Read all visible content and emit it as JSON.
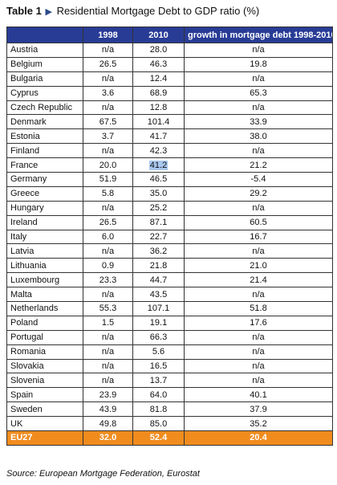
{
  "title": {
    "label": "Table 1",
    "arrow": "▶",
    "text": "Residential Mortgage Debt to GDP ratio (%)"
  },
  "table": {
    "headers": [
      "",
      "1998",
      "2010",
      "growth in mortgage debt 1998-2010"
    ],
    "rows": [
      [
        "Austria",
        "n/a",
        "28.0",
        "n/a"
      ],
      [
        "Belgium",
        "26.5",
        "46.3",
        "19.8"
      ],
      [
        "Bulgaria",
        "n/a",
        "12.4",
        "n/a"
      ],
      [
        "Cyprus",
        "3.6",
        "68.9",
        "65.3"
      ],
      [
        "Czech Republic",
        "n/a",
        "12.8",
        "n/a"
      ],
      [
        "Denmark",
        "67.5",
        "101.4",
        "33.9"
      ],
      [
        "Estonia",
        "3.7",
        "41.7",
        "38.0"
      ],
      [
        "Finland",
        "n/a",
        "42.3",
        "n/a"
      ],
      [
        "France",
        "20.0",
        "41.2",
        "21.2"
      ],
      [
        "Germany",
        "51.9",
        "46.5",
        "-5.4"
      ],
      [
        "Greece",
        "5.8",
        "35.0",
        "29.2"
      ],
      [
        "Hungary",
        "n/a",
        "25.2",
        "n/a"
      ],
      [
        "Ireland",
        "26.5",
        "87.1",
        "60.5"
      ],
      [
        "Italy",
        "6.0",
        "22.7",
        "16.7"
      ],
      [
        "Latvia",
        "n/a",
        "36.2",
        "n/a"
      ],
      [
        "Lithuania",
        "0.9",
        "21.8",
        "21.0"
      ],
      [
        "Luxembourg",
        "23.3",
        "44.7",
        "21.4"
      ],
      [
        "Malta",
        "n/a",
        "43.5",
        "n/a"
      ],
      [
        "Netherlands",
        "55.3",
        "107.1",
        "51.8"
      ],
      [
        "Poland",
        "1.5",
        "19.1",
        "17.6"
      ],
      [
        "Portugal",
        "n/a",
        "66.3",
        "n/a"
      ],
      [
        "Romania",
        "n/a",
        "5.6",
        "n/a"
      ],
      [
        "Slovakia",
        "n/a",
        "16.5",
        "n/a"
      ],
      [
        "Slovenia",
        "n/a",
        "13.7",
        "n/a"
      ],
      [
        "Spain",
        "23.9",
        "64.0",
        "40.1"
      ],
      [
        "Sweden",
        "43.9",
        "81.8",
        "37.9"
      ],
      [
        "UK",
        "49.8",
        "85.0",
        "35.2"
      ]
    ],
    "highlighted_cell": {
      "row": 8,
      "col": 2
    },
    "total": [
      "EU27",
      "32.0",
      "52.4",
      "20.4"
    ]
  },
  "source": "Source: European Mortgage Federation, Eurostat",
  "colors": {
    "header_bg": "#283c96",
    "total_bg": "#f08c1e",
    "highlight_bg": "#a9c8f0",
    "arrow": "#2a4a8a"
  }
}
